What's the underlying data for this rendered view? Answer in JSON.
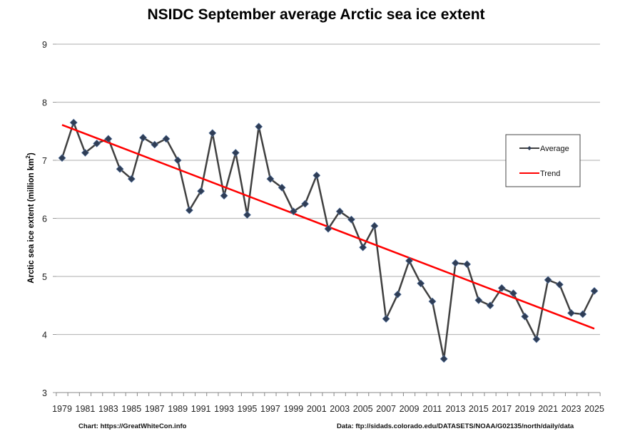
{
  "chart_data": {
    "type": "line",
    "title": "NSIDC September average Arctic sea ice extent",
    "xlabel": "",
    "ylabel": "Arctic sea ice extent (million km²)",
    "ylabel_main": "Arctic sea ice extent (million km",
    "ylabel_sup": "2",
    "ylabel_close": ")",
    "ylim": [
      3,
      9
    ],
    "yticks": [
      3,
      4,
      5,
      6,
      7,
      8,
      9
    ],
    "xlim": [
      1979,
      2025
    ],
    "xtick_labels": [
      "1979",
      "1981",
      "1983",
      "1985",
      "1987",
      "1989",
      "1991",
      "1993",
      "1995",
      "1997",
      "1999",
      "2001",
      "2003",
      "2005",
      "2007",
      "2009",
      "2011",
      "2013",
      "2015",
      "2017",
      "2019",
      "2021",
      "2023",
      "2025"
    ],
    "grid": true,
    "legend_position": "right",
    "x": [
      1979,
      1980,
      1981,
      1982,
      1983,
      1984,
      1985,
      1986,
      1987,
      1988,
      1989,
      1990,
      1991,
      1992,
      1993,
      1994,
      1995,
      1996,
      1997,
      1998,
      1999,
      2000,
      2001,
      2002,
      2003,
      2004,
      2005,
      2006,
      2007,
      2008,
      2009,
      2010,
      2011,
      2012,
      2013,
      2014,
      2015,
      2016,
      2017,
      2018,
      2019,
      2020,
      2021,
      2022,
      2023,
      2024,
      2025
    ],
    "series": [
      {
        "name": "Average",
        "color": "#404040",
        "marker": "diamond",
        "values": [
          7.04,
          7.65,
          7.13,
          7.29,
          7.37,
          6.85,
          6.68,
          7.39,
          7.27,
          7.37,
          7.0,
          6.14,
          6.47,
          7.47,
          6.39,
          7.13,
          6.06,
          7.58,
          6.68,
          6.53,
          6.12,
          6.25,
          6.74,
          5.82,
          6.12,
          5.98,
          5.5,
          5.87,
          4.27,
          4.69,
          5.27,
          4.88,
          4.57,
          3.58,
          5.23,
          5.21,
          4.59,
          4.5,
          4.8,
          4.71,
          4.31,
          3.92,
          4.94,
          4.86,
          4.37,
          4.35,
          4.75
        ]
      },
      {
        "name": "Trend",
        "color": "#ff0000",
        "marker": "none",
        "x": [
          1979,
          2025
        ],
        "values": [
          7.61,
          4.1
        ]
      }
    ]
  },
  "footer": {
    "chart_credit": "Chart: https://GreatWhiteCon.info",
    "data_credit": "Data: ftp://sidads.colorado.edu/DATASETS/NOAA/G02135/north/daily/data"
  }
}
